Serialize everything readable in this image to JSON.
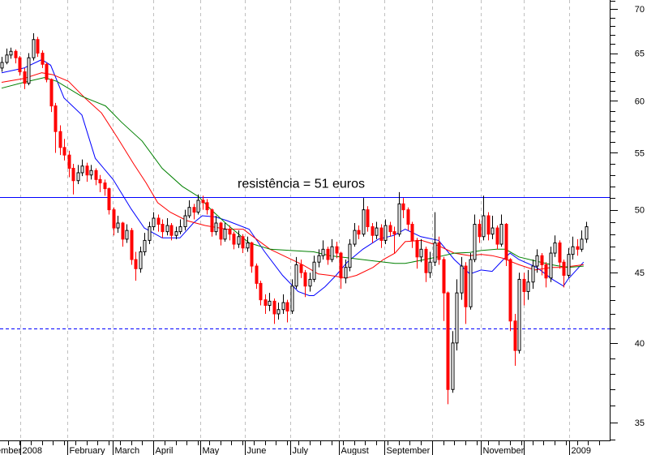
{
  "chart_data": {
    "type": "candlestick",
    "title": "",
    "xlabel": "",
    "ylabel": "",
    "y_scale": "log",
    "ylim": [
      34.0,
      71.0
    ],
    "y_ticks": [
      35,
      40,
      45,
      50,
      55,
      60,
      65,
      70
    ],
    "grid": "vertical dashed at month starts",
    "colors": {
      "up": "#000000",
      "down": "#ff0000",
      "ma_fast": "#0000ff",
      "ma_medium": "#ff0000",
      "ma_slow": "#008000",
      "hlines": "#0000ff",
      "grid": "#c0c0c0"
    },
    "month_labels": [
      {
        "index": -5.3,
        "label": "December"
      },
      {
        "index": 4.2,
        "label": "2008"
      },
      {
        "index": 14.7,
        "label": "February"
      },
      {
        "index": 24.9,
        "label": "March"
      },
      {
        "index": 34.0,
        "label": "April"
      },
      {
        "index": 44.5,
        "label": "May"
      },
      {
        "index": 54.5,
        "label": "June"
      },
      {
        "index": 64.7,
        "label": "July"
      },
      {
        "index": 75.6,
        "label": "August"
      },
      {
        "index": 85.8,
        "label": "September"
      },
      {
        "index": 96.5,
        "label": ""
      },
      {
        "index": 107.5,
        "label": "November"
      },
      {
        "index": 117.1,
        "label": ""
      },
      {
        "index": 127.3,
        "label": "2009"
      }
    ],
    "hlines": [
      {
        "value": 51.1,
        "style": "solid",
        "label": "resistência = 51 euros"
      },
      {
        "value": 41.0,
        "style": "dashed",
        "label": ""
      }
    ],
    "candles_ohlc": [
      [
        63.4,
        64.6,
        63.0,
        64.0
      ],
      [
        64.0,
        65.5,
        63.8,
        64.8
      ],
      [
        64.8,
        65.6,
        64.4,
        65.2
      ],
      [
        65.2,
        65.4,
        63.9,
        64.5
      ],
      [
        64.5,
        64.7,
        62.6,
        63.0
      ],
      [
        63.0,
        63.4,
        61.2,
        61.8
      ],
      [
        61.8,
        65.0,
        61.6,
        64.5
      ],
      [
        64.5,
        67.2,
        64.2,
        66.5
      ],
      [
        66.5,
        66.8,
        64.6,
        65.0
      ],
      [
        65.0,
        65.3,
        63.4,
        63.8
      ],
      [
        63.8,
        64.0,
        61.9,
        62.2
      ],
      [
        62.2,
        62.3,
        58.9,
        59.5
      ],
      [
        59.5,
        59.8,
        55.0,
        57.0
      ],
      [
        57.0,
        57.6,
        54.8,
        55.5
      ],
      [
        55.5,
        56.3,
        54.3,
        54.8
      ],
      [
        54.8,
        55.2,
        52.8,
        53.6
      ],
      [
        53.6,
        54.0,
        51.3,
        52.5
      ],
      [
        52.5,
        53.9,
        52.2,
        53.2
      ],
      [
        53.2,
        54.4,
        52.9,
        53.8
      ],
      [
        53.8,
        54.1,
        52.4,
        53.0
      ],
      [
        53.0,
        53.9,
        52.6,
        53.4
      ],
      [
        53.4,
        53.6,
        52.1,
        52.6
      ],
      [
        52.6,
        53.0,
        51.5,
        52.3
      ],
      [
        52.3,
        52.6,
        51.2,
        51.8
      ],
      [
        51.8,
        51.9,
        49.6,
        50.0
      ],
      [
        50.0,
        50.2,
        47.9,
        48.5
      ],
      [
        48.5,
        49.5,
        48.1,
        48.9
      ],
      [
        48.9,
        49.0,
        47.0,
        47.6
      ],
      [
        47.6,
        48.8,
        47.3,
        48.3
      ],
      [
        48.3,
        48.5,
        45.6,
        46.0
      ],
      [
        46.0,
        46.6,
        44.4,
        45.3
      ],
      [
        45.3,
        47.0,
        45.0,
        46.6
      ],
      [
        46.6,
        48.1,
        46.3,
        47.5
      ],
      [
        47.5,
        49.0,
        47.2,
        48.6
      ],
      [
        48.6,
        49.8,
        48.3,
        49.3
      ],
      [
        49.3,
        49.6,
        48.2,
        48.8
      ],
      [
        48.8,
        49.2,
        47.7,
        48.2
      ],
      [
        48.2,
        49.3,
        47.9,
        48.7
      ],
      [
        48.7,
        48.9,
        47.5,
        47.9
      ],
      [
        47.9,
        48.6,
        47.6,
        48.2
      ],
      [
        48.2,
        49.2,
        48.0,
        48.6
      ],
      [
        48.6,
        50.0,
        48.3,
        49.5
      ],
      [
        49.5,
        50.8,
        49.3,
        50.2
      ],
      [
        50.2,
        50.5,
        49.2,
        49.8
      ],
      [
        49.8,
        51.3,
        49.6,
        50.8
      ],
      [
        50.8,
        51.2,
        50.0,
        50.6
      ],
      [
        50.6,
        50.9,
        49.6,
        50.0
      ],
      [
        50.0,
        50.1,
        47.8,
        48.2
      ],
      [
        48.2,
        49.5,
        47.9,
        48.9
      ],
      [
        48.9,
        49.0,
        47.1,
        47.6
      ],
      [
        47.6,
        48.9,
        47.4,
        48.4
      ],
      [
        48.4,
        48.7,
        47.5,
        48.0
      ],
      [
        48.0,
        48.2,
        46.8,
        47.2
      ],
      [
        47.2,
        48.3,
        46.9,
        47.8
      ],
      [
        47.8,
        48.0,
        46.5,
        46.9
      ],
      [
        46.9,
        47.8,
        46.6,
        47.3
      ],
      [
        47.3,
        47.4,
        45.0,
        45.5
      ],
      [
        45.5,
        45.7,
        43.8,
        44.2
      ],
      [
        44.2,
        44.4,
        42.6,
        43.0
      ],
      [
        43.0,
        43.4,
        42.0,
        42.6
      ],
      [
        42.6,
        43.5,
        42.2,
        42.9
      ],
      [
        42.9,
        43.1,
        41.3,
        42.0
      ],
      [
        42.0,
        42.8,
        41.6,
        42.3
      ],
      [
        42.3,
        43.4,
        42.0,
        42.8
      ],
      [
        42.8,
        43.0,
        41.4,
        42.2
      ],
      [
        42.2,
        44.5,
        42.0,
        44.0
      ],
      [
        44.0,
        46.2,
        43.8,
        45.6
      ],
      [
        45.6,
        46.0,
        44.6,
        45.0
      ],
      [
        45.0,
        45.2,
        43.2,
        44.0
      ],
      [
        44.0,
        45.0,
        43.6,
        44.5
      ],
      [
        44.5,
        46.3,
        44.3,
        45.8
      ],
      [
        45.8,
        46.8,
        45.4,
        46.3
      ],
      [
        46.3,
        47.5,
        46.0,
        46.8
      ],
      [
        46.8,
        47.0,
        45.6,
        46.0
      ],
      [
        46.0,
        47.6,
        45.8,
        47.0
      ],
      [
        47.0,
        47.4,
        46.1,
        46.5
      ],
      [
        46.5,
        46.6,
        43.8,
        44.6
      ],
      [
        44.6,
        46.0,
        44.2,
        45.4
      ],
      [
        45.4,
        47.6,
        45.1,
        47.2
      ],
      [
        47.2,
        48.9,
        47.0,
        48.3
      ],
      [
        48.3,
        48.7,
        47.6,
        48.0
      ],
      [
        48.0,
        51.0,
        47.8,
        50.0
      ],
      [
        50.0,
        50.3,
        48.2,
        48.6
      ],
      [
        48.6,
        48.9,
        47.3,
        47.9
      ],
      [
        47.9,
        49.0,
        47.6,
        48.5
      ],
      [
        48.5,
        48.8,
        46.9,
        47.5
      ],
      [
        47.5,
        49.2,
        47.2,
        48.7
      ],
      [
        48.7,
        49.0,
        47.8,
        48.2
      ],
      [
        48.2,
        48.6,
        46.5,
        48.0
      ],
      [
        48.0,
        51.5,
        47.8,
        50.5
      ],
      [
        50.5,
        51.0,
        49.3,
        50.0
      ],
      [
        50.0,
        50.2,
        48.3,
        48.8
      ],
      [
        48.8,
        49.0,
        46.9,
        47.5
      ],
      [
        47.5,
        47.7,
        45.3,
        46.2
      ],
      [
        46.2,
        47.6,
        45.8,
        46.8
      ],
      [
        46.8,
        47.0,
        44.3,
        45.0
      ],
      [
        45.0,
        46.6,
        44.6,
        45.8
      ],
      [
        45.8,
        49.8,
        45.5,
        47.3
      ],
      [
        47.3,
        47.8,
        45.6,
        46.0
      ],
      [
        46.0,
        46.2,
        41.5,
        43.5
      ],
      [
        43.5,
        43.6,
        36.1,
        37.0
      ],
      [
        37.0,
        40.8,
        36.8,
        40.0
      ],
      [
        40.0,
        44.5,
        39.5,
        43.5
      ],
      [
        43.5,
        46.2,
        43.0,
        45.5
      ],
      [
        45.5,
        45.8,
        41.3,
        42.5
      ],
      [
        42.5,
        46.5,
        42.3,
        46.0
      ],
      [
        46.0,
        49.6,
        45.8,
        48.8
      ],
      [
        48.8,
        49.2,
        47.3,
        47.8
      ],
      [
        47.8,
        51.2,
        47.5,
        49.5
      ],
      [
        49.5,
        49.8,
        47.5,
        48.0
      ],
      [
        48.0,
        49.5,
        47.6,
        48.5
      ],
      [
        48.5,
        48.7,
        46.8,
        47.2
      ],
      [
        47.2,
        49.6,
        47.0,
        48.8
      ],
      [
        48.8,
        48.9,
        45.5,
        46.0
      ],
      [
        46.0,
        46.1,
        40.8,
        41.5
      ],
      [
        41.5,
        42.0,
        38.5,
        39.5
      ],
      [
        39.5,
        45.0,
        39.3,
        44.5
      ],
      [
        44.5,
        45.0,
        42.6,
        43.6
      ],
      [
        43.6,
        45.2,
        43.0,
        44.3
      ],
      [
        44.3,
        46.0,
        43.8,
        45.5
      ],
      [
        45.5,
        46.8,
        45.0,
        46.3
      ],
      [
        46.3,
        46.5,
        44.8,
        45.6
      ],
      [
        45.6,
        45.8,
        43.9,
        44.6
      ],
      [
        44.6,
        47.0,
        44.3,
        46.5
      ],
      [
        46.5,
        47.9,
        46.2,
        47.3
      ],
      [
        47.3,
        47.5,
        45.3,
        45.8
      ],
      [
        45.8,
        46.0,
        43.9,
        44.8
      ],
      [
        44.8,
        46.9,
        44.6,
        46.4
      ],
      [
        46.4,
        47.8,
        46.0,
        47.0
      ],
      [
        47.0,
        47.6,
        46.3,
        46.8
      ],
      [
        46.8,
        48.3,
        46.6,
        47.6
      ],
      [
        47.6,
        49.0,
        47.3,
        48.6
      ]
    ],
    "series": [
      {
        "color": "#0000ff",
        "points": [
          [
            0,
            62.9
          ],
          [
            5,
            63.4
          ],
          [
            9,
            64.3
          ],
          [
            11,
            63.7
          ],
          [
            14,
            60.3
          ],
          [
            18,
            58.6
          ],
          [
            21,
            54.5
          ],
          [
            25,
            52.6
          ],
          [
            29,
            50.1
          ],
          [
            32,
            48.5
          ],
          [
            36,
            47.7
          ],
          [
            40,
            47.7
          ],
          [
            43,
            48.9
          ],
          [
            45,
            49.5
          ],
          [
            48,
            49.4
          ],
          [
            50.5,
            49.1
          ],
          [
            55.5,
            48.4
          ],
          [
            59,
            46.6
          ],
          [
            63,
            44.8
          ],
          [
            66.5,
            43.6
          ],
          [
            69,
            43.3
          ],
          [
            70,
            43.3
          ],
          [
            72.5,
            43.95
          ],
          [
            75,
            44.8
          ],
          [
            77.5,
            45.8
          ],
          [
            81,
            46.8
          ],
          [
            84.5,
            47.6
          ],
          [
            88,
            47.9
          ],
          [
            90.5,
            48.4
          ],
          [
            94,
            47.8
          ],
          [
            98,
            47.5
          ],
          [
            101.5,
            46.0
          ],
          [
            105,
            44.9
          ],
          [
            107.5,
            45.2
          ],
          [
            110,
            45.1
          ],
          [
            112.5,
            46.0
          ],
          [
            114,
            46.5
          ],
          [
            116,
            46.0
          ],
          [
            120,
            45.4
          ],
          [
            123.5,
            44.5
          ],
          [
            126,
            44.0
          ],
          [
            127,
            44.5
          ],
          [
            130.5,
            45.8
          ]
        ]
      },
      {
        "color": "#ff0000",
        "points": [
          [
            0,
            61.9
          ],
          [
            5,
            62.3
          ],
          [
            9,
            62.9
          ],
          [
            11.5,
            62.7
          ],
          [
            15,
            62.0
          ],
          [
            18.7,
            60.3
          ],
          [
            22.4,
            58.8
          ],
          [
            26,
            56.4
          ],
          [
            29.6,
            54.0
          ],
          [
            32.4,
            52.3
          ],
          [
            35,
            50.6
          ],
          [
            37.8,
            49.8
          ],
          [
            41.5,
            49.1
          ],
          [
            45.6,
            48.7
          ],
          [
            50.5,
            48.4
          ],
          [
            54.2,
            48.4
          ],
          [
            56,
            47.9
          ],
          [
            60.2,
            46.8
          ],
          [
            63.8,
            46.2
          ],
          [
            67.5,
            45.6
          ],
          [
            71,
            44.9
          ],
          [
            73.6,
            44.8
          ],
          [
            77.3,
            44.6
          ],
          [
            79.6,
            44.8
          ],
          [
            83.3,
            45.4
          ],
          [
            85.6,
            46.0
          ],
          [
            88.2,
            46.5
          ],
          [
            90.5,
            47.4
          ],
          [
            94.2,
            47.5
          ],
          [
            97.8,
            47.1
          ],
          [
            101.5,
            46.5
          ],
          [
            105,
            46.3
          ],
          [
            107.5,
            46.4
          ],
          [
            110,
            46.3
          ],
          [
            112.4,
            46.1
          ],
          [
            116,
            45.6
          ],
          [
            119.6,
            45.2
          ],
          [
            123.3,
            45.4
          ],
          [
            125.6,
            45.4
          ],
          [
            130.5,
            45.6
          ]
        ]
      },
      {
        "color": "#008000",
        "points": [
          [
            0,
            61.3
          ],
          [
            5,
            61.9
          ],
          [
            9.6,
            62.4
          ],
          [
            12.4,
            62.0
          ],
          [
            17.8,
            60.5
          ],
          [
            23.3,
            59.5
          ],
          [
            26.9,
            57.9
          ],
          [
            31.5,
            56.1
          ],
          [
            36,
            53.6
          ],
          [
            40.5,
            52.0
          ],
          [
            44.2,
            51.1
          ],
          [
            47,
            50.0
          ],
          [
            50.5,
            48.8
          ],
          [
            55.5,
            47.3
          ],
          [
            60.2,
            46.8
          ],
          [
            65,
            46.7
          ],
          [
            70,
            46.6
          ],
          [
            73.6,
            46.3
          ],
          [
            78.4,
            46.1
          ],
          [
            83.3,
            45.9
          ],
          [
            88.2,
            45.7
          ],
          [
            90.5,
            45.7
          ],
          [
            94.2,
            45.95
          ],
          [
            97.8,
            46.2
          ],
          [
            101.5,
            46.5
          ],
          [
            105,
            46.55
          ],
          [
            107.5,
            46.7
          ],
          [
            111,
            46.8
          ],
          [
            113,
            46.8
          ],
          [
            116,
            46.2
          ],
          [
            119.6,
            45.9
          ],
          [
            123.3,
            45.6
          ],
          [
            126.9,
            45.4
          ],
          [
            130.5,
            45.5
          ]
        ]
      }
    ]
  }
}
